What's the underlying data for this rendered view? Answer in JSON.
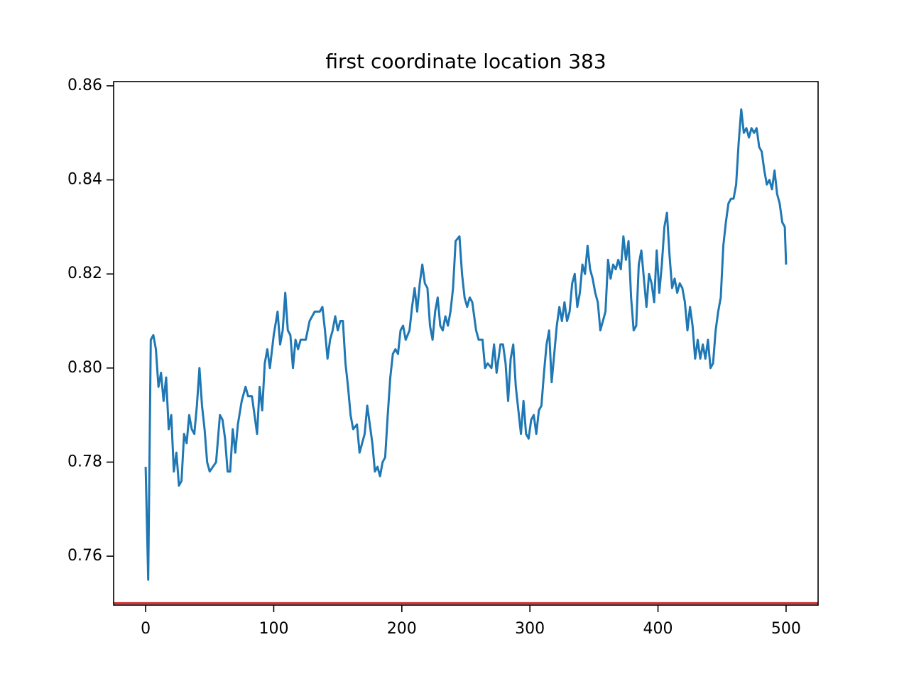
{
  "chart_data": {
    "type": "line",
    "title": "first coordinate location 383",
    "x": [
      0,
      2,
      4,
      6,
      8,
      10,
      12,
      14,
      16,
      18,
      20,
      22,
      24,
      26,
      28,
      30,
      32,
      34,
      36,
      38,
      40,
      42,
      44,
      46,
      48,
      50,
      55,
      58,
      60,
      62,
      64,
      66,
      68,
      70,
      72,
      75,
      78,
      80,
      83,
      85,
      87,
      89,
      91,
      93,
      95,
      97,
      100,
      103,
      105,
      107,
      109,
      111,
      113,
      115,
      117,
      119,
      121,
      125,
      128,
      132,
      136,
      138,
      140,
      142,
      144,
      146,
      148,
      150,
      152,
      154,
      156,
      158,
      160,
      162,
      165,
      167,
      169,
      171,
      173,
      175,
      177,
      179,
      181,
      183,
      185,
      187,
      189,
      191,
      193,
      195,
      197,
      199,
      201,
      203,
      206,
      208,
      210,
      212,
      214,
      216,
      218,
      220,
      222,
      224,
      226,
      228,
      230,
      232,
      234,
      236,
      238,
      240,
      242,
      245,
      247,
      249,
      251,
      253,
      255,
      258,
      260,
      263,
      265,
      267,
      270,
      272,
      274,
      277,
      279,
      281,
      283,
      285,
      287,
      289,
      291,
      293,
      295,
      297,
      299,
      301,
      303,
      305,
      307,
      309,
      311,
      313,
      315,
      317,
      319,
      321,
      323,
      325,
      327,
      329,
      331,
      333,
      335,
      337,
      339,
      341,
      343,
      345,
      347,
      349,
      351,
      353,
      355,
      357,
      359,
      361,
      363,
      365,
      367,
      369,
      371,
      373,
      375,
      377,
      379,
      381,
      383,
      385,
      387,
      389,
      391,
      393,
      395,
      397,
      399,
      401,
      403,
      405,
      407,
      409,
      411,
      413,
      415,
      417,
      419,
      421,
      423,
      425,
      427,
      429,
      431,
      433,
      435,
      437,
      439,
      441,
      443,
      445,
      447,
      449,
      451,
      453,
      455,
      457,
      459,
      461,
      463,
      465,
      467,
      469,
      471,
      473,
      475,
      477,
      479,
      481,
      483,
      485,
      487,
      489,
      491,
      493,
      495,
      497,
      499,
      500
    ],
    "series": [
      {
        "color": "#1f77b4",
        "values": [
          0.779,
          0.755,
          0.806,
          0.807,
          0.804,
          0.796,
          0.799,
          0.793,
          0.798,
          0.787,
          0.79,
          0.778,
          0.782,
          0.775,
          0.776,
          0.786,
          0.784,
          0.79,
          0.787,
          0.786,
          0.792,
          0.8,
          0.792,
          0.787,
          0.78,
          0.778,
          0.78,
          0.79,
          0.789,
          0.785,
          0.778,
          0.778,
          0.787,
          0.782,
          0.788,
          0.793,
          0.796,
          0.794,
          0.794,
          0.79,
          0.786,
          0.796,
          0.791,
          0.801,
          0.804,
          0.8,
          0.807,
          0.812,
          0.805,
          0.808,
          0.816,
          0.808,
          0.807,
          0.8,
          0.806,
          0.804,
          0.806,
          0.806,
          0.81,
          0.812,
          0.812,
          0.813,
          0.808,
          0.802,
          0.806,
          0.808,
          0.811,
          0.808,
          0.81,
          0.81,
          0.801,
          0.796,
          0.79,
          0.787,
          0.788,
          0.782,
          0.784,
          0.786,
          0.792,
          0.788,
          0.784,
          0.778,
          0.779,
          0.777,
          0.78,
          0.781,
          0.79,
          0.798,
          0.803,
          0.804,
          0.803,
          0.808,
          0.809,
          0.806,
          0.808,
          0.813,
          0.817,
          0.812,
          0.818,
          0.822,
          0.818,
          0.817,
          0.809,
          0.806,
          0.812,
          0.815,
          0.809,
          0.808,
          0.811,
          0.809,
          0.812,
          0.817,
          0.827,
          0.828,
          0.82,
          0.815,
          0.813,
          0.815,
          0.814,
          0.808,
          0.806,
          0.806,
          0.8,
          0.801,
          0.8,
          0.805,
          0.799,
          0.805,
          0.805,
          0.801,
          0.793,
          0.802,
          0.805,
          0.796,
          0.791,
          0.786,
          0.793,
          0.786,
          0.785,
          0.789,
          0.79,
          0.786,
          0.791,
          0.792,
          0.799,
          0.805,
          0.808,
          0.797,
          0.803,
          0.809,
          0.813,
          0.81,
          0.814,
          0.81,
          0.812,
          0.818,
          0.82,
          0.813,
          0.816,
          0.822,
          0.82,
          0.826,
          0.821,
          0.819,
          0.816,
          0.814,
          0.808,
          0.81,
          0.812,
          0.823,
          0.819,
          0.822,
          0.821,
          0.823,
          0.821,
          0.828,
          0.823,
          0.827,
          0.815,
          0.808,
          0.809,
          0.822,
          0.825,
          0.819,
          0.813,
          0.82,
          0.818,
          0.814,
          0.825,
          0.816,
          0.822,
          0.83,
          0.833,
          0.824,
          0.817,
          0.819,
          0.816,
          0.818,
          0.817,
          0.814,
          0.808,
          0.813,
          0.809,
          0.802,
          0.806,
          0.802,
          0.805,
          0.802,
          0.806,
          0.8,
          0.801,
          0.808,
          0.812,
          0.815,
          0.826,
          0.831,
          0.835,
          0.836,
          0.836,
          0.839,
          0.848,
          0.855,
          0.85,
          0.851,
          0.849,
          0.851,
          0.85,
          0.851,
          0.847,
          0.846,
          0.842,
          0.839,
          0.84,
          0.838,
          0.842,
          0.837,
          0.835,
          0.831,
          0.83,
          0.822
        ]
      }
    ],
    "hline": {
      "value": 0.75,
      "color": "#d62728"
    },
    "xlim": [
      -25,
      525
    ],
    "ylim": [
      0.7496,
      0.8609
    ],
    "xticks": [
      0,
      100,
      200,
      300,
      400,
      500
    ],
    "yticks": [
      {
        "value": 0.76,
        "label": "0.76"
      },
      {
        "value": 0.78,
        "label": "0.78"
      },
      {
        "value": 0.8,
        "label": "0.80"
      },
      {
        "value": 0.82,
        "label": "0.82"
      },
      {
        "value": 0.84,
        "label": "0.84"
      },
      {
        "value": 0.86,
        "label": "0.86"
      }
    ]
  }
}
